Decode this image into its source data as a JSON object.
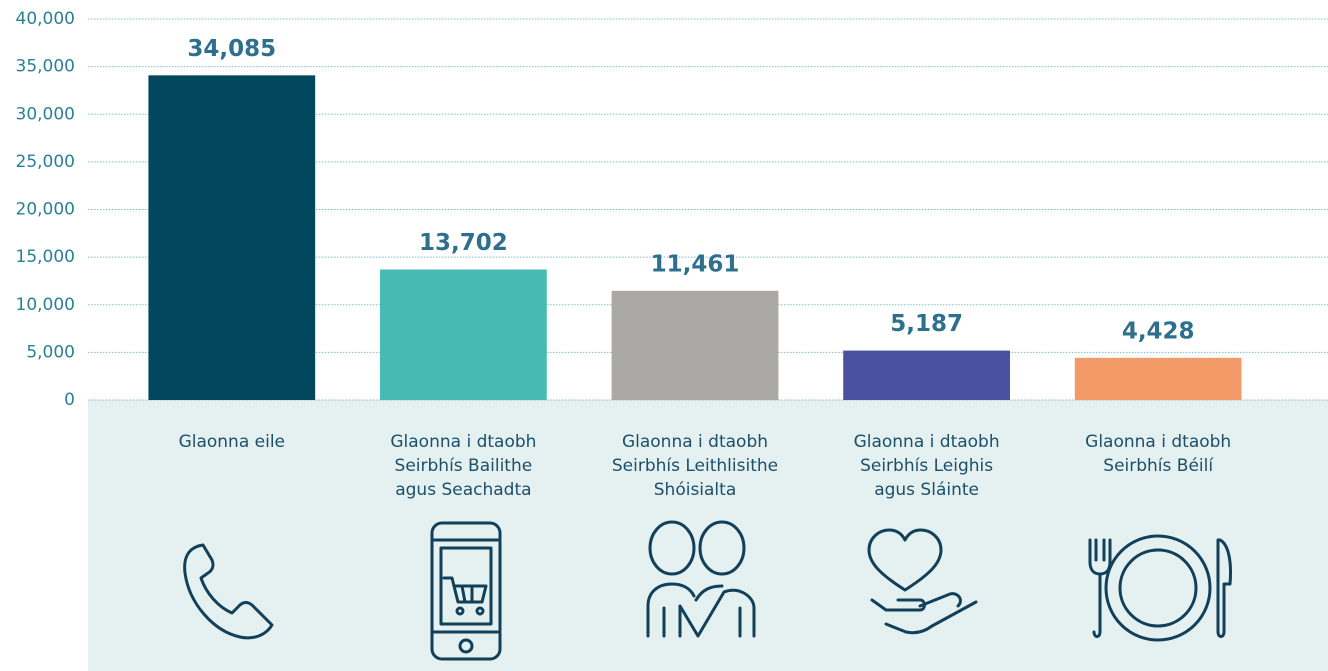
{
  "chart_data": {
    "type": "bar",
    "categories": [
      "Glaonna eile",
      "Glaonna i dtaobh\nSeirbhís Bailithe\nagus Seachadta",
      "Glaonna i dtaobh\nSeirbhís Leithlisithe\nShóisialta",
      "Glaonna i dtaobh\nSeirbhís Leighis\nagus Sláinte",
      "Glaonna i dtaobh\nSeirbhís Béilí"
    ],
    "values": [
      34085,
      13702,
      11461,
      5187,
      4428
    ],
    "value_labels": [
      "34,085",
      "13,702",
      "11,461",
      "5,187",
      "4,428"
    ],
    "colors": [
      "#02475e",
      "#47bab5",
      "#aba9a8",
      "#4a4f9e",
      "#f29a68"
    ],
    "ylim": [
      0,
      40000
    ],
    "yticks": [
      0,
      {
        "value": 5000,
        "label": "5,000"
      },
      {
        "value": 10000,
        "label": "10,000"
      },
      {
        "value": 15000,
        "label": "15,000"
      },
      {
        "value": 20000,
        "label": "20,000"
      },
      {
        "value": 25000,
        "label": "25,000"
      },
      {
        "value": 30000,
        "label": "30,000"
      },
      {
        "value": 35000,
        "label": "35,000"
      },
      {
        "value": 40000,
        "label": "40,000"
      }
    ],
    "grid": true
  }
}
